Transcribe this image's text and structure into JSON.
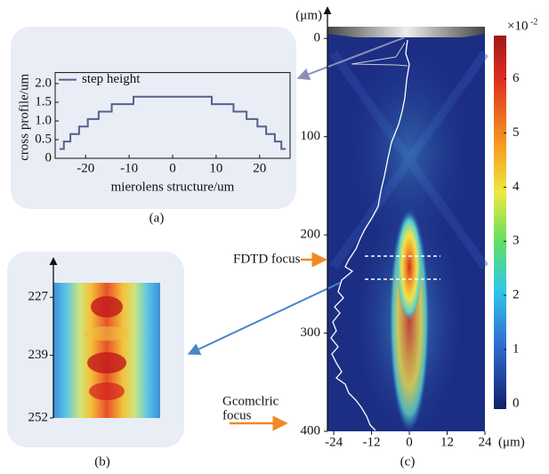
{
  "chart_data": [
    {
      "type": "line",
      "panel_label": "(a)",
      "y_label": "cross profile/um",
      "x_label": "mierolens structure/um",
      "series": [
        {
          "name": "step height",
          "color": "#5a5f8a",
          "x": [
            -26,
            -25,
            -25,
            -23.5,
            -23.5,
            -21.5,
            -21.5,
            -19.5,
            -19.5,
            -17,
            -17,
            -14,
            -14,
            -9,
            -9,
            9,
            9,
            14,
            14,
            17,
            17,
            19.5,
            19.5,
            21.5,
            21.5,
            23.5,
            23.5,
            25,
            25,
            26
          ],
          "values": [
            0.25,
            0.25,
            0.45,
            0.45,
            0.65,
            0.65,
            0.85,
            0.85,
            1.05,
            1.05,
            1.25,
            1.25,
            1.45,
            1.45,
            1.65,
            1.65,
            1.45,
            1.45,
            1.25,
            1.25,
            1.05,
            1.05,
            0.85,
            0.85,
            0.65,
            0.65,
            0.45,
            0.45,
            0.25,
            0.25
          ]
        }
      ],
      "xlim": [
        -27,
        27
      ],
      "xticks": [
        -20,
        -10,
        0,
        10,
        20
      ],
      "ylim": [
        0,
        2.2
      ],
      "yticks": [
        0,
        0.5,
        {
          "value": 1,
          "label": "1.0"
        },
        1.5,
        {
          "value": 2,
          "label": "2.0"
        }
      ],
      "legend": "upper left"
    },
    {
      "type": "heatmap",
      "panel_label": "(b)",
      "ylim": [
        224,
        252
      ],
      "yticks": [
        227,
        239,
        252
      ]
    },
    {
      "type": "heatmap",
      "panel_label": "(c)",
      "y_unit": "(μm)",
      "x_unit": "(μm)",
      "xlim": [
        -26,
        24
      ],
      "xticks": [
        -24,
        -12,
        0,
        12,
        24
      ],
      "ylim": [
        -12,
        400
      ],
      "yticks": [
        0,
        100,
        200,
        300,
        400
      ],
      "colorbar": {
        "label": "×10",
        "exponent": "-2",
        "lim": [
          -0.1,
          6.8
        ],
        "ticks": [
          0,
          1,
          2,
          3,
          4,
          5,
          6
        ]
      },
      "annotations": [
        {
          "lines": [
            "FDTD focus"
          ]
        },
        {
          "lines": [
            "Gcomclric",
            "focus"
          ]
        }
      ]
    }
  ]
}
